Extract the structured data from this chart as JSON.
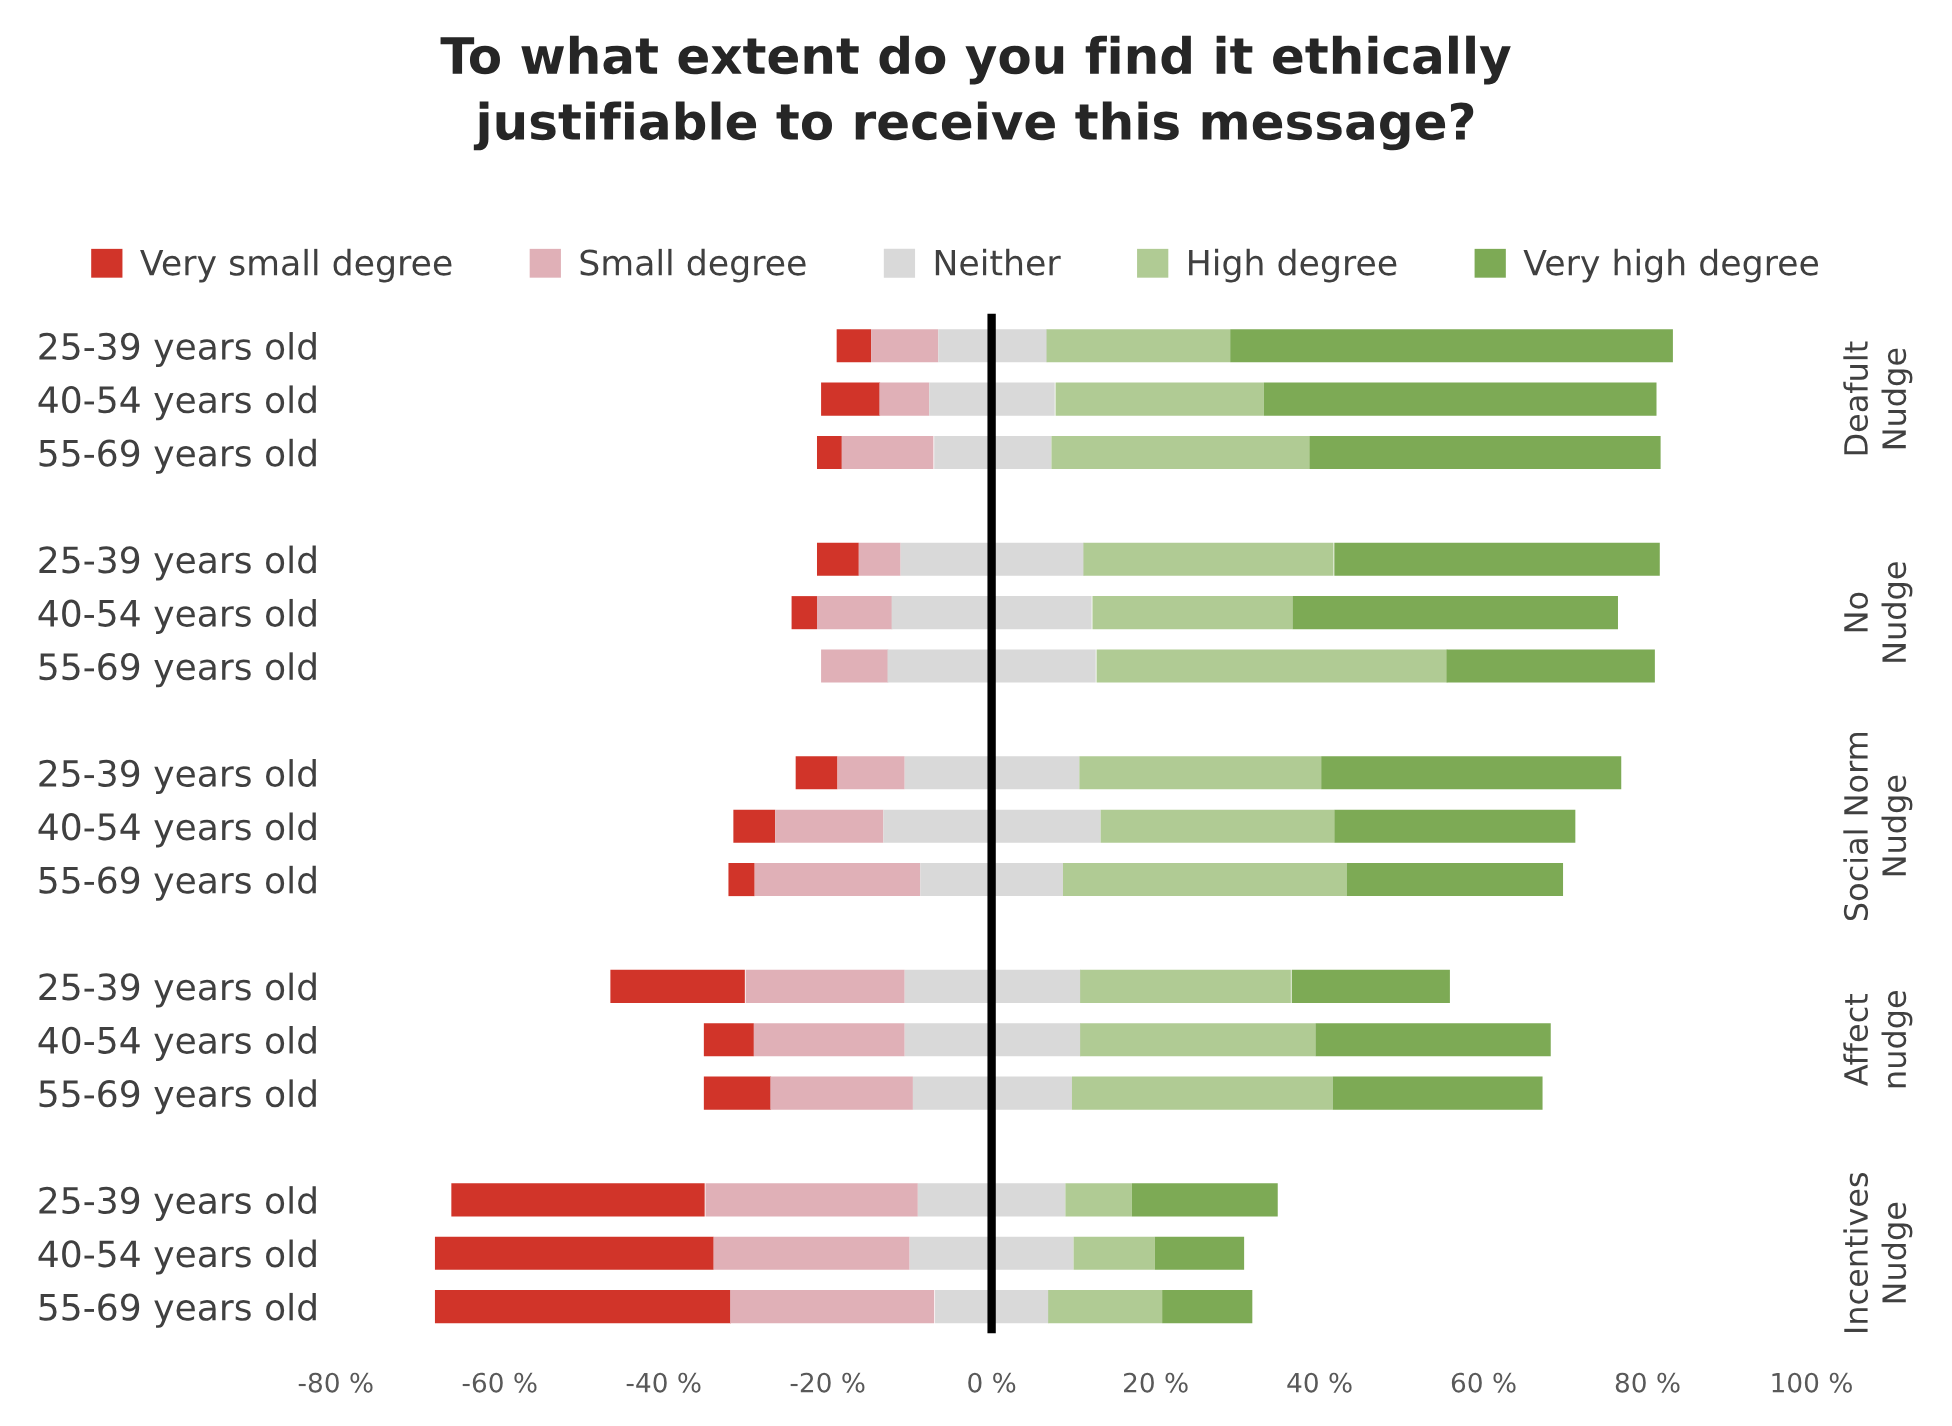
{
  "chart_data": {
    "type": "bar",
    "orientation": "horizontal",
    "title": "To what extent do you find it ethically\njustifiable to receive this message?",
    "categories": [
      "25-39 years old",
      "40-54 years old",
      "55-69 years old",
      null,
      "25-39 years old",
      "40-54 years old",
      "55-69 years old",
      null,
      "25-39 years old",
      "40-54 years old",
      "55-69 years old",
      null,
      "25-39 years old",
      "40-54 years old",
      "55-69 years old",
      null,
      "25-39 years old",
      "40-54 years old",
      "55-69 years old"
    ],
    "series": [
      {
        "name": "Very small degree",
        "color": "#d13429",
        "values": [
          4.2,
          7.2,
          3.1,
          null,
          5.1,
          3.1,
          null,
          null,
          5.1,
          5.1,
          3.2,
          null,
          16.4,
          6.1,
          8.2,
          null,
          30.9,
          34.0,
          36.1
        ],
        "base": [
          -18.9,
          -20.8,
          -21.3,
          null,
          -21.3,
          -24.4,
          null,
          null,
          -23.9,
          -31.5,
          -32.1,
          null,
          -46.5,
          -35.1,
          -35.1,
          null,
          -65.9,
          -67.9,
          -67.9
        ]
      },
      {
        "name": "Small degree",
        "color": "#e0b0b7",
        "values": [
          8.2,
          6.1,
          11.2,
          null,
          5.1,
          9.2,
          8.2,
          null,
          8.2,
          13.2,
          20.2,
          null,
          19.4,
          18.4,
          17.4,
          null,
          25.9,
          23.9,
          24.9
        ],
        "base": [
          -14.7,
          -13.7,
          -18.3,
          null,
          -16.2,
          -21.3,
          -20.8,
          null,
          -18.8,
          -26.4,
          -28.9,
          null,
          -30.0,
          -29.0,
          -27.0,
          null,
          -34.9,
          -33.9,
          -31.9
        ]
      },
      {
        "name": "Neither",
        "color": "#d9d9d9",
        "values": [
          13.3,
          15.3,
          14.3,
          null,
          22.4,
          24.4,
          25.4,
          null,
          21.3,
          26.5,
          17.4,
          null,
          21.5,
          21.5,
          19.4,
          null,
          18.0,
          20.0,
          13.9
        ],
        "base": [
          -6.5,
          -7.6,
          -7.0,
          null,
          -11.1,
          -12.2,
          -12.7,
          null,
          -10.6,
          -13.2,
          -8.7,
          null,
          -10.6,
          -10.6,
          -9.6,
          null,
          -9.0,
          -10.0,
          -6.9
        ]
      },
      {
        "name": "High degree",
        "color": "#b0cb94",
        "values": [
          22.4,
          25.4,
          31.6,
          null,
          30.5,
          24.4,
          42.8,
          null,
          29.5,
          28.5,
          34.6,
          null,
          25.7,
          28.7,
          31.8,
          null,
          8.1,
          9.9,
          13.9
        ],
        "base": [
          6.7,
          7.8,
          7.3,
          null,
          11.2,
          12.3,
          12.8,
          null,
          10.7,
          13.3,
          8.7,
          null,
          10.8,
          10.8,
          9.8,
          null,
          9.0,
          10.0,
          6.9
        ]
      },
      {
        "name": "Very high degree",
        "color": "#7daa55",
        "values": [
          54.0,
          47.9,
          42.8,
          null,
          39.7,
          39.7,
          25.4,
          null,
          36.6,
          29.4,
          26.4,
          null,
          19.3,
          28.7,
          25.6,
          null,
          17.8,
          10.9,
          11.0
        ],
        "base": [
          29.1,
          33.2,
          38.8,
          null,
          41.8,
          36.7,
          55.5,
          null,
          40.2,
          41.8,
          43.3,
          null,
          36.6,
          39.5,
          41.6,
          null,
          17.1,
          19.9,
          20.8
        ]
      }
    ],
    "xlim": [
      -80,
      100
    ],
    "xticks": [
      {
        "value": -80,
        "label": "-80 %"
      },
      {
        "value": -60,
        "label": "-60 %"
      },
      {
        "value": -40,
        "label": "-40 %"
      },
      {
        "value": -20,
        "label": "-20 %"
      },
      {
        "value": 0,
        "label": "0 %"
      },
      {
        "value": 20,
        "label": "20 %"
      },
      {
        "value": 40,
        "label": "40 %"
      },
      {
        "value": 60,
        "label": "60 %"
      },
      {
        "value": 80,
        "label": "80 %"
      },
      {
        "value": 100,
        "label": "100 %"
      }
    ],
    "ref_lines": [
      {
        "axis": "x",
        "value": 0,
        "color": "#000000"
      }
    ],
    "annotations": [
      "Deafult\nNudge",
      "No\nNudge",
      "Social Norm\nNudge",
      "Affect\nnudge",
      "Incentives\nNudge"
    ],
    "legend": "top",
    "grid": false
  }
}
